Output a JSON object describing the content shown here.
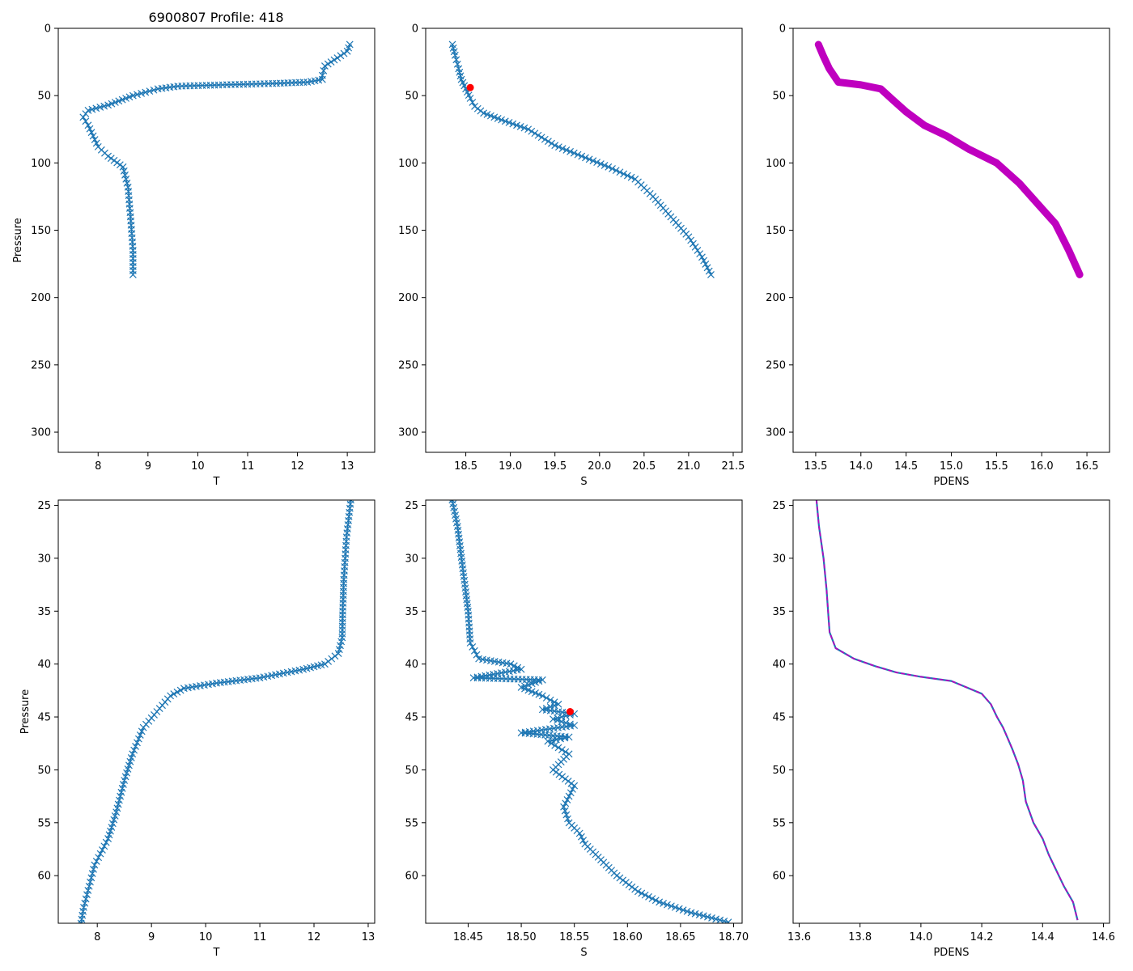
{
  "figure": {
    "title": "6900807 Profile: 418"
  },
  "colors": {
    "series": "#1f77b4",
    "density": "#bf00bf",
    "marker": "#ff0000",
    "axis": "#000000"
  },
  "chart_data": [
    {
      "type": "line",
      "panel": "top-left",
      "title": "6900807 Profile: 418",
      "xlabel": "T",
      "ylabel": "Pressure",
      "xlim": [
        7.2,
        13.55
      ],
      "ylim": [
        315,
        0
      ],
      "y_inverted": true,
      "xticks": [
        "8",
        "9",
        "10",
        "11",
        "12",
        "13"
      ],
      "yticks": [
        "0",
        "50",
        "100",
        "150",
        "200",
        "250",
        "300"
      ],
      "style": "line-x",
      "color": "#1f77b4",
      "series": [
        {
          "name": "T",
          "x": [
            13.05,
            13.0,
            12.8,
            12.55,
            12.5,
            12.5,
            12.2,
            11.5,
            10.5,
            9.6,
            9.2,
            8.7,
            8.2,
            7.8,
            7.7,
            7.8,
            7.9,
            8.0,
            8.2,
            8.5,
            8.6,
            8.65,
            8.7,
            8.7
          ],
          "y": [
            12,
            17,
            22,
            28,
            35,
            38,
            40,
            41,
            42,
            43,
            45,
            50,
            57,
            61,
            66,
            72,
            80,
            88,
            95,
            103,
            118,
            140,
            165,
            183
          ]
        }
      ],
      "markers": []
    },
    {
      "type": "line",
      "panel": "top-middle",
      "title": "",
      "xlabel": "S",
      "ylabel": "",
      "xlim": [
        18.05,
        21.6
      ],
      "ylim": [
        315,
        0
      ],
      "y_inverted": true,
      "xticks": [
        "18.5",
        "19.0",
        "19.5",
        "20.0",
        "20.5",
        "21.0",
        "21.5"
      ],
      "yticks": [
        "0",
        "50",
        "100",
        "150",
        "200",
        "250",
        "300"
      ],
      "style": "line-x",
      "color": "#1f77b4",
      "series": [
        {
          "name": "S",
          "x": [
            18.35,
            18.38,
            18.42,
            18.45,
            18.5,
            18.55,
            18.6,
            18.7,
            18.9,
            19.2,
            19.5,
            19.8,
            20.1,
            20.4,
            20.6,
            20.8,
            21.0,
            21.15,
            21.25
          ],
          "y": [
            12,
            20,
            30,
            38,
            45,
            52,
            58,
            63,
            68,
            75,
            87,
            95,
            103,
            112,
            125,
            140,
            155,
            170,
            183
          ]
        }
      ],
      "markers": [
        {
          "x": 18.55,
          "y": 44
        }
      ]
    },
    {
      "type": "line",
      "panel": "top-right",
      "title": "",
      "xlabel": "PDENS",
      "ylabel": "",
      "xlim": [
        13.25,
        16.75
      ],
      "ylim": [
        315,
        0
      ],
      "y_inverted": true,
      "xticks": [
        "13.5",
        "14.0",
        "14.5",
        "15.0",
        "15.5",
        "16.0",
        "16.5"
      ],
      "yticks": [
        "0",
        "50",
        "100",
        "150",
        "200",
        "250",
        "300"
      ],
      "style": "thick-line",
      "color": "#bf00bf",
      "series": [
        {
          "name": "PDENS",
          "x": [
            13.53,
            13.58,
            13.65,
            13.75,
            14.0,
            14.22,
            14.35,
            14.5,
            14.7,
            14.95,
            15.2,
            15.5,
            15.75,
            15.95,
            16.15,
            16.3,
            16.42
          ],
          "y": [
            12,
            20,
            30,
            40,
            42,
            45,
            53,
            62,
            72,
            80,
            90,
            100,
            115,
            130,
            145,
            165,
            183
          ]
        }
      ],
      "markers": []
    },
    {
      "type": "line",
      "panel": "bottom-left",
      "title": "",
      "xlabel": "T",
      "ylabel": "Pressure",
      "xlim": [
        7.28,
        13.12
      ],
      "ylim": [
        64.5,
        24.5
      ],
      "y_inverted": true,
      "xticks": [
        "8",
        "9",
        "10",
        "11",
        "12",
        "13"
      ],
      "yticks": [
        "25",
        "30",
        "35",
        "40",
        "45",
        "50",
        "55",
        "60"
      ],
      "style": "line-x",
      "color": "#1f77b4",
      "series": [
        {
          "name": "T",
          "x": [
            12.68,
            12.6,
            12.55,
            12.53,
            12.52,
            12.45,
            12.2,
            11.8,
            11.0,
            10.2,
            9.6,
            9.35,
            9.1,
            8.85,
            8.65,
            8.5,
            8.35,
            8.2,
            7.95,
            7.85,
            7.75,
            7.7
          ],
          "y": [
            24.5,
            28,
            32,
            35,
            37.5,
            39,
            40,
            40.5,
            41.3,
            41.8,
            42.3,
            43,
            44.5,
            46,
            48.5,
            51,
            54,
            56.5,
            59,
            61,
            63,
            64.5
          ]
        }
      ],
      "markers": []
    },
    {
      "type": "line",
      "panel": "bottom-middle",
      "title": "",
      "xlabel": "S",
      "ylabel": "",
      "xlim": [
        18.41,
        18.708
      ],
      "ylim": [
        64.5,
        24.5
      ],
      "y_inverted": true,
      "xticks": [
        "18.45",
        "18.50",
        "18.55",
        "18.60",
        "18.65",
        "18.70"
      ],
      "yticks": [
        "25",
        "30",
        "35",
        "40",
        "45",
        "50",
        "55",
        "60"
      ],
      "style": "line-x",
      "color": "#1f77b4",
      "series": [
        {
          "name": "S",
          "x": [
            18.435,
            18.44,
            18.445,
            18.45,
            18.452,
            18.46,
            18.49,
            18.5,
            18.455,
            18.52,
            18.5,
            18.52,
            18.535,
            18.52,
            18.55,
            18.53,
            18.55,
            18.5,
            18.545,
            18.525,
            18.545,
            18.53,
            18.55,
            18.54,
            18.545,
            18.555,
            18.56,
            18.575,
            18.59,
            18.61,
            18.63,
            18.66,
            18.695
          ],
          "y": [
            24.5,
            27,
            31,
            35,
            38,
            39.5,
            40,
            40.5,
            41.3,
            41.5,
            42.2,
            43,
            43.8,
            44.3,
            44.7,
            45.2,
            45.8,
            46.5,
            46.9,
            47.3,
            48.5,
            50,
            51.5,
            53.5,
            55,
            56,
            57,
            58.5,
            60,
            61.5,
            62.5,
            63.5,
            64.4
          ]
        }
      ],
      "markers": [
        {
          "x": 18.546,
          "y": 44.5
        }
      ]
    },
    {
      "type": "line",
      "panel": "bottom-right",
      "title": "",
      "xlabel": "PDENS",
      "ylabel": "",
      "xlim": [
        13.58,
        14.62
      ],
      "ylim": [
        64.5,
        24.5
      ],
      "y_inverted": true,
      "xticks": [
        "13.6",
        "13.8",
        "14.0",
        "14.2",
        "14.4",
        "14.6"
      ],
      "yticks": [
        "25",
        "30",
        "35",
        "40",
        "45",
        "50",
        "55",
        "60"
      ],
      "style": "dashed-overlay",
      "color": "#bf00bf",
      "series": [
        {
          "name": "PDENS",
          "x": [
            13.657,
            13.665,
            13.68,
            13.69,
            13.695,
            13.7,
            13.72,
            13.78,
            13.85,
            13.92,
            14.0,
            14.1,
            14.2,
            14.23,
            14.25,
            14.27,
            14.285,
            14.3,
            14.32,
            14.335,
            14.345,
            14.37,
            14.4,
            14.42,
            14.445,
            14.47,
            14.5,
            14.515
          ],
          "y": [
            24.5,
            27,
            30,
            33,
            35,
            37,
            38.5,
            39.5,
            40.2,
            40.8,
            41.2,
            41.6,
            42.8,
            43.8,
            45,
            46,
            47,
            48,
            49.5,
            51,
            53,
            55,
            56.5,
            58,
            59.5,
            61,
            62.5,
            64.2
          ]
        }
      ],
      "markers": []
    }
  ]
}
